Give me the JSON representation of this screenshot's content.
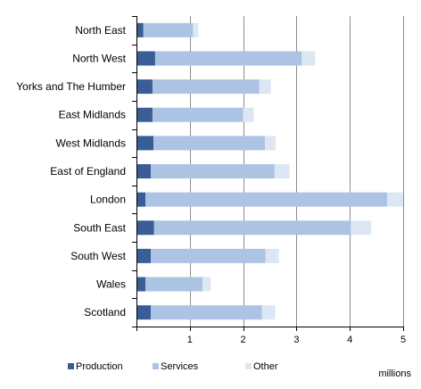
{
  "chart_data": {
    "type": "bar",
    "orientation": "horizontal",
    "stacked": true,
    "categories": [
      "North East",
      "North West",
      "Yorks and The Humber",
      "East Midlands",
      "West Midlands",
      "East of England",
      "London",
      "South East",
      "South West",
      "Wales",
      "Scotland"
    ],
    "series": [
      {
        "name": "Production",
        "color": "#3a5d96",
        "values": [
          0.13,
          0.35,
          0.3,
          0.3,
          0.32,
          0.27,
          0.17,
          0.33,
          0.27,
          0.17,
          0.27
        ]
      },
      {
        "name": "Services",
        "color": "#adc3e3",
        "values": [
          0.93,
          2.75,
          2.0,
          1.7,
          2.09,
          2.32,
          4.53,
          3.69,
          2.15,
          1.07,
          2.08
        ]
      },
      {
        "name": "Other",
        "color": "#dde7f3",
        "values": [
          0.1,
          0.25,
          0.22,
          0.2,
          0.2,
          0.28,
          0.3,
          0.38,
          0.25,
          0.15,
          0.25
        ]
      }
    ],
    "xlim": [
      0,
      5
    ],
    "xticks": [
      "",
      "1",
      "2",
      "3",
      "4",
      "5"
    ],
    "unit_label": "millions",
    "grid": true,
    "legend_position": "bottom"
  }
}
